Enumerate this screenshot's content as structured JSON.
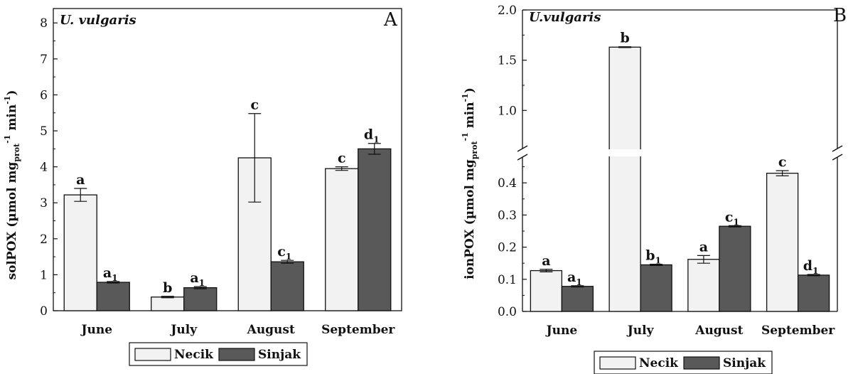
{
  "legend": {
    "series": [
      "Necik",
      "Sinjak"
    ]
  },
  "colors": {
    "Necik": "#f2f2f2",
    "Sinjak": "#595959",
    "axis": "#111111"
  },
  "chart_data": [
    {
      "panel": "A",
      "type": "bar",
      "species": "U. vulgaris",
      "ylabel_main": "solPOX (µmol mg",
      "ylabel_prot": "prot",
      "ylabel_exp1": "-1",
      "ylabel_mid": " min",
      "ylabel_exp2": "-1",
      "ylabel_close": ")",
      "ylim": [
        0,
        8.4
      ],
      "yticks": [
        0,
        1,
        2,
        3,
        4,
        5,
        6,
        7,
        8
      ],
      "categories": [
        "June",
        "July",
        "August",
        "September"
      ],
      "series": [
        {
          "name": "Necik",
          "values": [
            3.22,
            0.38,
            4.25,
            3.95
          ],
          "errors": [
            0.18,
            0.02,
            1.23,
            0.05
          ],
          "labels": [
            "a",
            "b",
            "c",
            "c"
          ],
          "subs": [
            "",
            "",
            "",
            ""
          ]
        },
        {
          "name": "Sinjak",
          "values": [
            0.79,
            0.64,
            1.36,
            4.5
          ],
          "errors": [
            0.02,
            0.03,
            0.04,
            0.15
          ],
          "labels": [
            "a",
            "a",
            "c",
            "d"
          ],
          "subs": [
            "1",
            "1",
            "1",
            "1"
          ]
        }
      ]
    },
    {
      "panel": "B",
      "type": "bar",
      "species": "U.vulgaris",
      "ylabel_main": "ionPOX (µmol mg",
      "ylabel_prot": "prot",
      "ylabel_exp1": "-1",
      "ylabel_mid": " min",
      "ylabel_exp2": "-1",
      "ylabel_close": ")",
      "broken_axis": {
        "lower": [
          0,
          0.48
        ],
        "upper": [
          0.62,
          2.0
        ]
      },
      "yticks_lower": [
        "0.0",
        "0.1",
        "0.2",
        "0.3",
        "0.4"
      ],
      "yticks_upper": [
        "1.0",
        "1.5",
        "2.0"
      ],
      "categories": [
        "June",
        "July",
        "August",
        "September"
      ],
      "series": [
        {
          "name": "Necik",
          "values": [
            0.127,
            1.63,
            0.162,
            0.43
          ],
          "errors": [
            0.004,
            0.004,
            0.012,
            0.008
          ],
          "labels": [
            "a",
            "b",
            "a",
            "c"
          ],
          "subs": [
            "",
            "",
            "",
            ""
          ]
        },
        {
          "name": "Sinjak",
          "values": [
            0.078,
            0.145,
            0.265,
            0.113
          ],
          "errors": [
            0.002,
            0.002,
            0.002,
            0.002
          ],
          "labels": [
            "a",
            "b",
            "c",
            "d"
          ],
          "subs": [
            "1",
            "1",
            "1",
            "1"
          ]
        }
      ]
    }
  ]
}
